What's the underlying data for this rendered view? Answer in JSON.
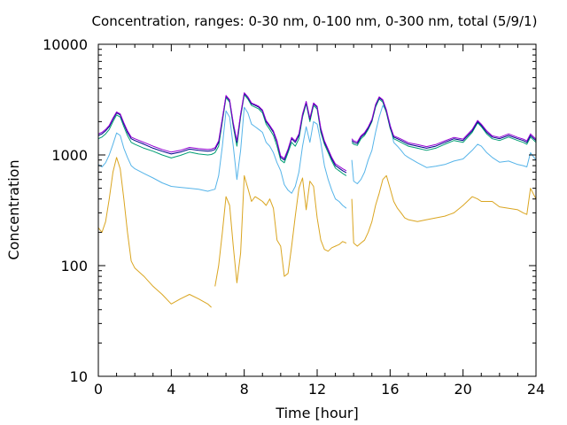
{
  "chart_data": {
    "type": "line",
    "title": "Concentration, ranges: 0-30 nm, 0-100 nm, 0-300 nm, total (5/9/1)",
    "xlabel": "Time [hour]",
    "ylabel": "Concentration",
    "xlim": [
      0,
      24
    ],
    "ylim": [
      10,
      10000
    ],
    "yscale": "log",
    "grid": false,
    "legend": "none",
    "x_ticks": [
      "0",
      "4",
      "8",
      "12",
      "16",
      "20",
      "24"
    ],
    "x_tick_values": [
      0,
      4,
      8,
      12,
      16,
      20,
      24
    ],
    "y_ticks": [
      "10",
      "100",
      "1000",
      "10000"
    ],
    "y_tick_values": [
      10,
      100,
      1000,
      10000
    ],
    "series": [
      {
        "color": "#DAA520",
        "x": [
          0,
          0.2,
          0.4,
          0.6,
          0.8,
          1.0,
          1.2,
          1.4,
          1.6,
          1.8,
          2.0,
          2.5,
          3.0,
          3.5,
          4.0,
          4.5,
          5.0,
          5.5,
          6.0,
          6.2,
          "gap",
          6.4,
          6.6,
          6.8,
          7.0,
          7.2,
          7.4,
          7.6,
          7.8,
          8.0,
          8.2,
          8.4,
          8.6,
          8.8,
          9.0,
          9.2,
          9.4,
          9.6,
          9.8,
          10.0,
          10.2,
          10.4,
          10.6,
          10.8,
          11.0,
          11.2,
          11.4,
          11.6,
          11.8,
          12.0,
          12.2,
          12.4,
          12.6,
          12.8,
          13.0,
          13.2,
          13.4,
          13.6,
          "gap",
          13.9,
          14.0,
          14.2,
          14.4,
          14.6,
          14.8,
          15.0,
          15.2,
          15.4,
          15.6,
          15.8,
          16.0,
          16.2,
          16.4,
          16.6,
          16.8,
          17.0,
          17.5,
          18.0,
          18.5,
          19.0,
          19.5,
          20.0,
          20.5,
          20.8,
          21.0,
          21.3,
          21.6,
          22.0,
          22.5,
          23.0,
          23.3,
          23.5,
          23.7,
          24.0
        ],
        "values": [
          220,
          200,
          250,
          400,
          700,
          950,
          750,
          400,
          200,
          110,
          95,
          80,
          65,
          55,
          45,
          50,
          55,
          50,
          45,
          42,
          null,
          65,
          100,
          200,
          420,
          350,
          150,
          70,
          130,
          650,
          500,
          380,
          420,
          400,
          380,
          350,
          400,
          330,
          170,
          150,
          80,
          85,
          150,
          280,
          500,
          620,
          320,
          580,
          520,
          270,
          170,
          140,
          135,
          145,
          150,
          155,
          165,
          160,
          null,
          400,
          160,
          150,
          160,
          170,
          200,
          250,
          350,
          450,
          600,
          650,
          500,
          380,
          330,
          300,
          270,
          260,
          250,
          260,
          270,
          280,
          300,
          350,
          420,
          400,
          380,
          380,
          380,
          340,
          330,
          320,
          300,
          290,
          500,
          400
        ]
      },
      {
        "color": "#56B4E9",
        "x": [
          0,
          0.2,
          0.4,
          0.6,
          0.8,
          1.0,
          1.2,
          1.4,
          1.6,
          1.8,
          2.0,
          2.5,
          3.0,
          3.5,
          4.0,
          4.5,
          5.0,
          5.5,
          6.0,
          6.2,
          6.4,
          6.6,
          6.8,
          7.0,
          7.2,
          7.4,
          7.6,
          7.8,
          8.0,
          8.2,
          8.4,
          8.6,
          8.8,
          9.0,
          9.2,
          9.4,
          9.6,
          9.8,
          10.0,
          10.2,
          10.4,
          10.6,
          10.8,
          11.0,
          11.2,
          11.4,
          11.6,
          11.8,
          12.0,
          12.2,
          12.4,
          12.6,
          12.8,
          13.0,
          13.2,
          13.4,
          13.6,
          "gap",
          13.9,
          14.0,
          14.2,
          14.4,
          14.6,
          14.8,
          15.0,
          15.2,
          15.4,
          15.6,
          15.8,
          16.0,
          16.2,
          16.4,
          16.6,
          16.8,
          17.0,
          17.5,
          18.0,
          18.5,
          19.0,
          19.5,
          20.0,
          20.5,
          20.8,
          21.0,
          21.3,
          21.6,
          22.0,
          22.5,
          23.0,
          23.3,
          23.5,
          23.7,
          24.0
        ],
        "values": [
          820,
          780,
          850,
          1000,
          1250,
          1580,
          1500,
          1150,
          950,
          800,
          750,
          680,
          620,
          560,
          520,
          510,
          500,
          490,
          470,
          480,
          490,
          650,
          1200,
          2500,
          2200,
          1200,
          600,
          1100,
          2700,
          2400,
          1900,
          1800,
          1700,
          1600,
          1300,
          1200,
          1050,
          850,
          720,
          540,
          480,
          450,
          520,
          700,
          1200,
          1800,
          1300,
          2000,
          1900,
          1300,
          800,
          600,
          480,
          400,
          380,
          350,
          330,
          null,
          900,
          580,
          550,
          600,
          700,
          900,
          1100,
          1600,
          2200,
          2800,
          2500,
          1900,
          1300,
          1200,
          1100,
          1000,
          950,
          850,
          770,
          790,
          820,
          880,
          920,
          1100,
          1250,
          1200,
          1050,
          950,
          860,
          880,
          820,
          800,
          780,
          1050,
          900
        ]
      },
      {
        "color": "#009E73",
        "x": [
          0,
          0.2,
          0.4,
          0.6,
          0.8,
          1.0,
          1.2,
          1.4,
          1.6,
          1.8,
          2.0,
          2.5,
          3.0,
          3.5,
          4.0,
          4.5,
          5.0,
          5.5,
          6.0,
          6.2,
          6.4,
          6.6,
          6.8,
          7.0,
          7.2,
          7.4,
          7.6,
          7.8,
          8.0,
          8.2,
          8.4,
          8.6,
          8.8,
          9.0,
          9.2,
          9.4,
          9.6,
          9.8,
          10.0,
          10.2,
          10.4,
          10.6,
          10.8,
          11.0,
          11.2,
          11.4,
          11.6,
          11.8,
          12.0,
          12.2,
          12.4,
          12.6,
          12.8,
          13.0,
          13.2,
          13.4,
          13.6,
          "gap",
          13.9,
          14.0,
          14.2,
          14.4,
          14.6,
          14.8,
          15.0,
          15.2,
          15.4,
          15.6,
          15.8,
          16.0,
          16.2,
          16.4,
          16.6,
          16.8,
          17.0,
          17.5,
          18.0,
          18.5,
          19.0,
          19.5,
          20.0,
          20.5,
          20.8,
          21.0,
          21.3,
          21.6,
          22.0,
          22.5,
          23.0,
          23.3,
          23.5,
          23.7,
          24.0
        ],
        "values": [
          1400,
          1450,
          1550,
          1700,
          2000,
          2300,
          2200,
          1800,
          1500,
          1300,
          1250,
          1150,
          1080,
          1000,
          940,
          990,
          1060,
          1020,
          1000,
          1010,
          1050,
          1200,
          2000,
          3300,
          3000,
          1800,
          1200,
          2200,
          3500,
          3200,
          2800,
          2700,
          2600,
          2400,
          1900,
          1700,
          1500,
          1200,
          900,
          850,
          1050,
          1300,
          1200,
          1400,
          2200,
          2900,
          2000,
          2800,
          2600,
          1600,
          1250,
          1050,
          880,
          760,
          720,
          680,
          650,
          null,
          1300,
          1250,
          1220,
          1400,
          1500,
          1700,
          2000,
          2700,
          3200,
          3000,
          2400,
          1750,
          1400,
          1350,
          1300,
          1250,
          1200,
          1150,
          1100,
          1150,
          1250,
          1350,
          1300,
          1600,
          1950,
          1800,
          1550,
          1400,
          1350,
          1450,
          1350,
          1300,
          1250,
          1450,
          1300
        ]
      },
      {
        "color": "#00008B",
        "x": [
          0,
          0.2,
          0.4,
          0.6,
          0.8,
          1.0,
          1.2,
          1.4,
          1.6,
          1.8,
          2.0,
          2.5,
          3.0,
          3.5,
          4.0,
          4.5,
          5.0,
          5.5,
          6.0,
          6.2,
          6.4,
          6.6,
          6.8,
          7.0,
          7.2,
          7.4,
          7.6,
          7.8,
          8.0,
          8.2,
          8.4,
          8.6,
          8.8,
          9.0,
          9.2,
          9.4,
          9.6,
          9.8,
          10.0,
          10.2,
          10.4,
          10.6,
          10.8,
          11.0,
          11.2,
          11.4,
          11.6,
          11.8,
          12.0,
          12.2,
          12.4,
          12.6,
          12.8,
          13.0,
          13.2,
          13.4,
          13.6,
          "gap",
          13.9,
          14.0,
          14.2,
          14.4,
          14.6,
          14.8,
          15.0,
          15.2,
          15.4,
          15.6,
          15.8,
          16.0,
          16.2,
          16.4,
          16.6,
          16.8,
          17.0,
          17.5,
          18.0,
          18.5,
          19.0,
          19.5,
          20.0,
          20.5,
          20.8,
          21.0,
          21.3,
          21.6,
          22.0,
          22.5,
          23.0,
          23.3,
          23.5,
          23.7,
          24.0
        ],
        "values": [
          1500,
          1550,
          1650,
          1800,
          2100,
          2400,
          2300,
          1900,
          1600,
          1400,
          1350,
          1250,
          1150,
          1080,
          1020,
          1060,
          1130,
          1100,
          1080,
          1090,
          1120,
          1300,
          2100,
          3400,
          3100,
          1900,
          1300,
          2300,
          3600,
          3300,
          2900,
          2800,
          2700,
          2500,
          2000,
          1800,
          1600,
          1300,
          950,
          900,
          1100,
          1400,
          1300,
          1500,
          2300,
          3000,
          2100,
          2900,
          2700,
          1700,
          1300,
          1100,
          920,
          800,
          760,
          720,
          690,
          null,
          1350,
          1300,
          1270,
          1450,
          1550,
          1750,
          2050,
          2800,
          3300,
          3100,
          2500,
          1800,
          1450,
          1400,
          1350,
          1300,
          1250,
          1200,
          1150,
          1200,
          1300,
          1400,
          1350,
          1650,
          2000,
          1850,
          1600,
          1450,
          1400,
          1500,
          1400,
          1350,
          1300,
          1500,
          1350
        ]
      },
      {
        "color": "#9400D3",
        "x": [
          0,
          0.2,
          0.4,
          0.6,
          0.8,
          1.0,
          1.2,
          1.4,
          1.6,
          1.8,
          2.0,
          2.5,
          3.0,
          3.5,
          4.0,
          4.5,
          5.0,
          5.5,
          6.0,
          6.2,
          6.4,
          6.6,
          6.8,
          7.0,
          7.2,
          7.4,
          7.6,
          7.8,
          8.0,
          8.2,
          8.4,
          8.6,
          8.8,
          9.0,
          9.2,
          9.4,
          9.6,
          9.8,
          10.0,
          10.2,
          10.4,
          10.6,
          10.8,
          11.0,
          11.2,
          11.4,
          11.6,
          11.8,
          12.0,
          12.2,
          12.4,
          12.6,
          12.8,
          13.0,
          13.2,
          13.4,
          13.6,
          "gap",
          13.9,
          14.0,
          14.2,
          14.4,
          14.6,
          14.8,
          15.0,
          15.2,
          15.4,
          15.6,
          15.8,
          16.0,
          16.2,
          16.4,
          16.6,
          16.8,
          17.0,
          17.5,
          18.0,
          18.5,
          19.0,
          19.5,
          20.0,
          20.5,
          20.8,
          21.0,
          21.3,
          21.6,
          22.0,
          22.5,
          23.0,
          23.3,
          23.5,
          23.7,
          24.0
        ],
        "values": [
          1550,
          1600,
          1700,
          1850,
          2150,
          2450,
          2350,
          1950,
          1650,
          1450,
          1400,
          1300,
          1200,
          1120,
          1060,
          1100,
          1170,
          1140,
          1120,
          1130,
          1160,
          1340,
          2150,
          3450,
          3150,
          1950,
          1340,
          2350,
          3650,
          3350,
          2950,
          2850,
          2750,
          2550,
          2050,
          1850,
          1650,
          1340,
          980,
          930,
          1130,
          1440,
          1340,
          1550,
          2350,
          3050,
          2150,
          2950,
          2750,
          1750,
          1340,
          1130,
          950,
          830,
          790,
          750,
          720,
          null,
          1400,
          1340,
          1310,
          1490,
          1590,
          1790,
          2100,
          2850,
          3350,
          3150,
          2550,
          1850,
          1490,
          1440,
          1390,
          1340,
          1290,
          1240,
          1190,
          1240,
          1340,
          1440,
          1390,
          1700,
          2050,
          1900,
          1650,
          1490,
          1440,
          1550,
          1440,
          1390,
          1340,
          1550,
          1390
        ]
      }
    ]
  }
}
